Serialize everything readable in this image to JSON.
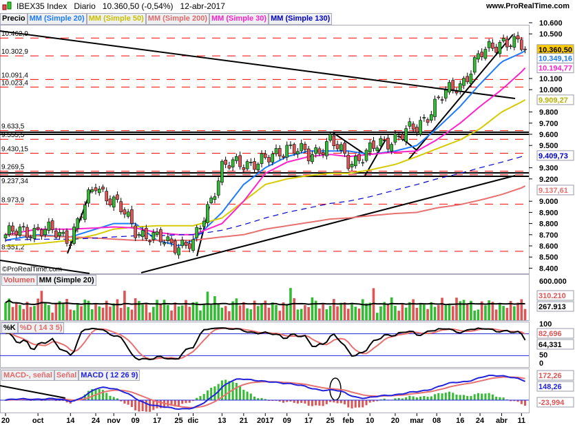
{
  "header": {
    "instrument": "IBEX35 Index",
    "period": "Diario",
    "price": "10.360,50 (-0,54%)",
    "date": "12-abr-2017",
    "site": "www.ProRealTime.com"
  },
  "legend": {
    "price": "Precio",
    "ma20": "MM (Simple 20)",
    "ma50": "MM (Simple 50)",
    "ma200": "MM (Simple 200)",
    "ma30": "MM (Simple 30)",
    "ma130": "MM (Simple 130)"
  },
  "watermark": "©ProRealTime.com",
  "volume_legend": {
    "vol": "Volumen",
    "ma": "MM (Simple 20)"
  },
  "stoch_legend": {
    "k": "%K",
    "d": "%D ( 14 3 5)"
  },
  "macd_legend": {
    "hist": "MACD-, señal",
    "signal": "Señal",
    "macd": "MACD ( 12 26 9)"
  },
  "colors": {
    "ma20": "#1e7bff",
    "ma50": "#d4cc00",
    "ma200": "#e87070",
    "ma30": "#ff22cc",
    "ma130": "#0000cc",
    "up": "#33bb33",
    "down": "#dd5555",
    "level": "#ff0000",
    "last_price_bg": "#ffcc00"
  },
  "chart_data": [
    {
      "type": "candlestick",
      "title": "IBEX35 Index",
      "x_tick_labels": [
        "20",
        "oct",
        "14",
        "24",
        "nov",
        "09",
        "17",
        "25",
        "dic",
        "13",
        "21",
        "2017",
        "09",
        "17",
        "25",
        "feb",
        "10",
        "20",
        "mar",
        "08",
        "16",
        "24",
        "abr",
        "11"
      ],
      "y_tick_labels": [
        "10.600",
        "10.500",
        "10.100",
        "10.000",
        "9.800",
        "9.700",
        "9.600",
        "9.500",
        "9.300",
        "9.200",
        "9.000",
        "8.900",
        "8.800",
        "8.700",
        "8.600",
        "8.500",
        "8.400"
      ],
      "ylim": [
        8400,
        10600
      ],
      "close_at_ticks": [
        8700,
        8750,
        8680,
        9150,
        9000,
        8750,
        8650,
        8620,
        8600,
        9300,
        9350,
        9350,
        9500,
        9400,
        9550,
        9350,
        9450,
        9580,
        9650,
        9900,
        10050,
        10300,
        10450,
        10380
      ],
      "last_close": 10360.5,
      "series": [
        {
          "name": "MM (Simple 20)",
          "last": "10.349,16",
          "at_ticks": [
            8650,
            8700,
            8680,
            8750,
            8800,
            8800,
            8650,
            8600,
            8650,
            8900,
            9150,
            9300,
            9400,
            9450,
            9450,
            9450,
            9420,
            9450,
            9500,
            9650,
            9850,
            10050,
            10250,
            10330
          ],
          "last_value": 10349.16
        },
        {
          "name": "MM (Simple 50)",
          "last": "9.909,27",
          "at_ticks": [
            8600,
            8620,
            8650,
            8700,
            8750,
            8770,
            8780,
            8780,
            8780,
            8850,
            9000,
            9150,
            9200,
            9230,
            9250,
            9250,
            9280,
            9330,
            9400,
            9470,
            9550,
            9650,
            9800,
            9890
          ],
          "last_value": 9909.27
        },
        {
          "name": "MM (Simple 200)",
          "last": "9.137,61",
          "at_ticks": [
            8700,
            8690,
            8680,
            8670,
            8660,
            8650,
            8650,
            8650,
            8650,
            8680,
            8700,
            8750,
            8780,
            8810,
            8840,
            8850,
            8870,
            8890,
            8900,
            8940,
            8970,
            9010,
            9060,
            9120
          ],
          "last_value": 9137.61
        },
        {
          "name": "MM (Simple 30)",
          "last": "10.194,77",
          "at_ticks": [
            8700,
            8750,
            8750,
            8760,
            8770,
            8760,
            8720,
            8700,
            8700,
            8800,
            9000,
            9250,
            9350,
            9400,
            9420,
            9400,
            9420,
            9440,
            9450,
            9550,
            9700,
            9850,
            10000,
            10160
          ],
          "last_value": 10194.77
        },
        {
          "name": "MM (Simple 130)",
          "last": "9.409,73",
          "at_ticks": [
            8650,
            8660,
            8660,
            8670,
            8680,
            8690,
            8690,
            8700,
            8700,
            8740,
            8790,
            8850,
            8900,
            8940,
            8980,
            9000,
            9040,
            9100,
            9150,
            9200,
            9250,
            9300,
            9350,
            9400
          ],
          "last_value": 9409.73
        }
      ],
      "levels": [
        "10.462,9",
        "10.302,9",
        "10.091,4",
        "10.023,4",
        "9.633,5",
        "9.555,5",
        "9.430,15",
        "9.269,5",
        "9.237,34",
        "8.973,9",
        "8.551,2"
      ],
      "level_values": [
        10462.9,
        10302.9,
        10091.4,
        10023.4,
        9633.5,
        9555.5,
        9430.15,
        9269.5,
        9237.34,
        8973.9,
        8551.2
      ],
      "last_price_label": "10.360,50"
    },
    {
      "type": "bar",
      "title": "Volumen",
      "y_tick_labels": [
        "600.000"
      ],
      "last_volume": "310.210",
      "ma_last": "267.913"
    },
    {
      "type": "line",
      "title": "%K %D ( 14 3 5)",
      "y_tick_labels": [
        "100",
        "50",
        "0"
      ],
      "bands": [
        80,
        20
      ],
      "k_last": "64,331",
      "d_last": "82,696"
    },
    {
      "type": "line",
      "title": "MACD ( 12 26 9)",
      "macd_last": "148,26",
      "signal_last": "172,26",
      "hist_last": "-23,994"
    }
  ]
}
